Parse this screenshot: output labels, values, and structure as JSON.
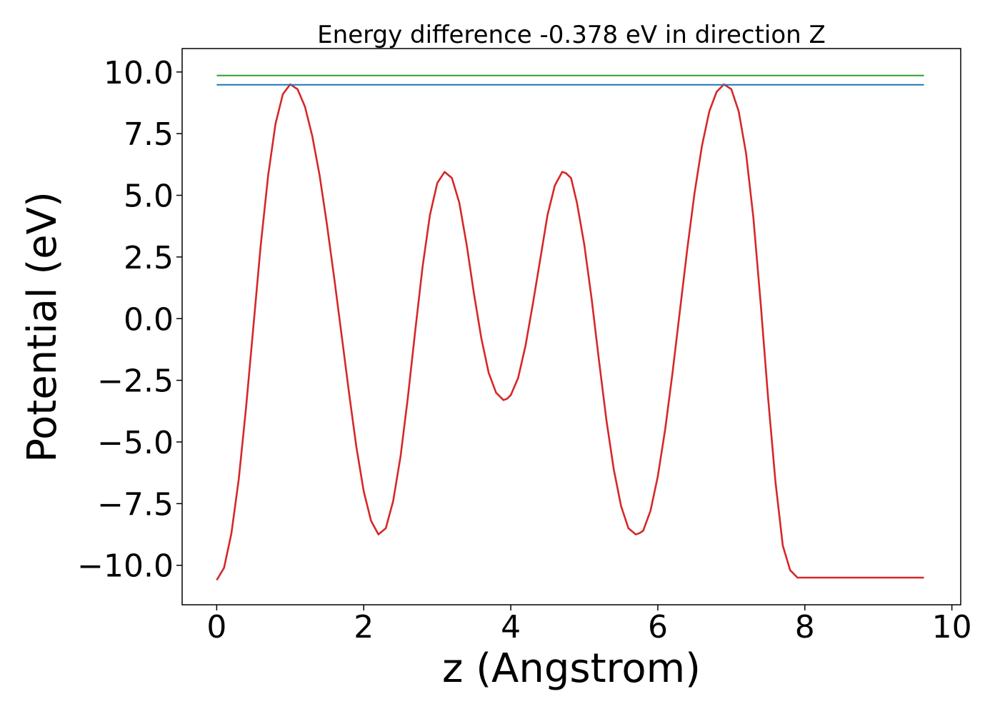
{
  "chart_data": {
    "type": "line",
    "title": "Energy difference -0.378 eV in direction Z",
    "xlabel": "z (Angstrom)",
    "ylabel": "Potential (eV)",
    "xlim": [
      -0.47,
      10.12
    ],
    "ylim": [
      -11.6,
      10.95
    ],
    "xticks": [
      0,
      2,
      4,
      6,
      8,
      10
    ],
    "xtick_labels": [
      "0",
      "2",
      "4",
      "6",
      "8",
      "10"
    ],
    "yticks": [
      -10,
      -7.5,
      -5,
      -2.5,
      0,
      2.5,
      5,
      7.5,
      10
    ],
    "ytick_labels": [
      "−10.0",
      "−7.5",
      "−5.0",
      "−2.5",
      "0.0",
      "2.5",
      "5.0",
      "7.5",
      "10.0"
    ],
    "grid": false,
    "legend": "none",
    "series": [
      {
        "color": "#d62728",
        "x": [
          0,
          0.1,
          0.2,
          0.3,
          0.4,
          0.5,
          0.6,
          0.7,
          0.8,
          0.9,
          1.0,
          1.1,
          1.2,
          1.3,
          1.4,
          1.5,
          1.6,
          1.7,
          1.8,
          1.9,
          2.0,
          2.1,
          2.2,
          2.3,
          2.4,
          2.5,
          2.6,
          2.7,
          2.8,
          2.9,
          3.0,
          3.1,
          3.2,
          3.3,
          3.4,
          3.5,
          3.6,
          3.7,
          3.8,
          3.9,
          3.95,
          4.0,
          4.1,
          4.2,
          4.3,
          4.4,
          4.5,
          4.6,
          4.7,
          4.75,
          4.82,
          4.9,
          5.0,
          5.1,
          5.2,
          5.3,
          5.4,
          5.5,
          5.6,
          5.7,
          5.75,
          5.8,
          5.9,
          6.0,
          6.1,
          6.2,
          6.3,
          6.4,
          6.5,
          6.6,
          6.7,
          6.8,
          6.9,
          7.0,
          7.1,
          7.2,
          7.3,
          7.4,
          7.5,
          7.6,
          7.7,
          7.8,
          7.9,
          8.0,
          8.1,
          8.2,
          8.3,
          8.4,
          8.5,
          8.6,
          8.7,
          8.8,
          8.9,
          9.0,
          9.1,
          9.2,
          9.3,
          9.4,
          9.5,
          9.55,
          9.62
        ],
        "y": [
          -10.6,
          -10.1,
          -8.7,
          -6.5,
          -3.6,
          -0.3,
          3.0,
          5.8,
          7.9,
          9.1,
          9.5,
          9.3,
          8.6,
          7.4,
          5.8,
          3.8,
          1.6,
          -0.7,
          -3.0,
          -5.2,
          -7.0,
          -8.2,
          -8.75,
          -8.5,
          -7.4,
          -5.6,
          -3.2,
          -0.5,
          2.1,
          4.2,
          5.5,
          5.95,
          5.7,
          4.7,
          3.0,
          1.0,
          -0.8,
          -2.2,
          -3.0,
          -3.3,
          -3.25,
          -3.1,
          -2.4,
          -1.1,
          0.6,
          2.4,
          4.2,
          5.4,
          5.95,
          5.9,
          5.7,
          4.7,
          3.0,
          0.8,
          -1.7,
          -4.1,
          -6.1,
          -7.6,
          -8.5,
          -8.75,
          -8.7,
          -8.6,
          -7.8,
          -6.4,
          -4.5,
          -2.2,
          0.3,
          2.8,
          5.1,
          7.0,
          8.4,
          9.2,
          9.5,
          9.3,
          8.4,
          6.7,
          4.1,
          0.6,
          -3.2,
          -6.6,
          -9.2,
          -10.2,
          -10.5,
          -10.5,
          -10.5,
          -10.5,
          -10.5,
          -10.5,
          -10.5,
          -10.5,
          -10.5,
          -10.5,
          -10.5,
          -10.5,
          -10.5,
          -10.5,
          -10.5,
          -10.5,
          -10.5,
          -10.5,
          -10.5
        ]
      },
      {
        "color": "#1f77b4",
        "x": [
          0,
          9.62
        ],
        "y": [
          9.48,
          9.48
        ]
      },
      {
        "color": "#2ca02c",
        "x": [
          0,
          9.62
        ],
        "y": [
          9.86,
          9.86
        ]
      }
    ]
  }
}
